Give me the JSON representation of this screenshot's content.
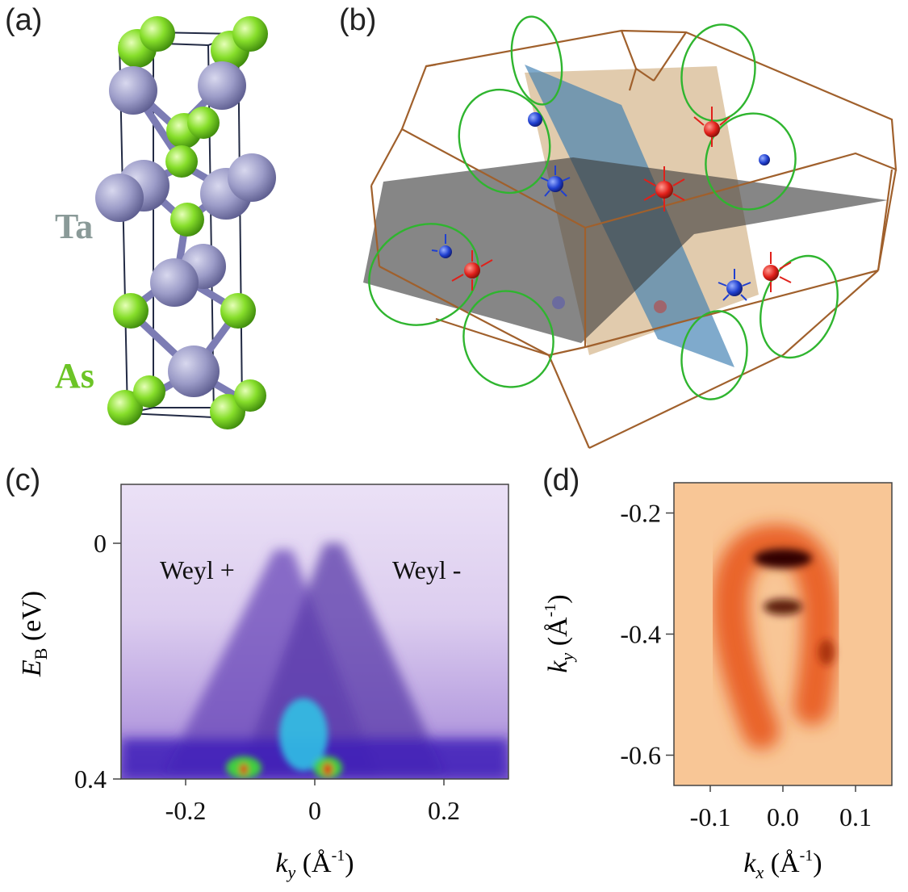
{
  "figure": {
    "panels": {
      "a": {
        "label": "(a)",
        "species": [
          {
            "name": "Ta",
            "color": "#9c9cc8"
          },
          {
            "name": "As",
            "color": "#7ed321"
          }
        ]
      },
      "b": {
        "label": "(b)"
      },
      "c": {
        "label": "(c)",
        "annotations": [
          "Weyl +",
          "Weyl -"
        ]
      },
      "d": {
        "label": "(d)"
      }
    },
    "colors": {
      "ta_atom": "#9c9cc8",
      "as_atom": "#7ed321",
      "bz_edge": "#a0602c",
      "plus_chirality": "#e0201a",
      "minus_chirality": "#2040d0",
      "nodal_loop": "#2fb52f"
    }
  },
  "chart_data": [
    {
      "panel": "c",
      "type": "heatmap",
      "xlabel": "k_y (Å^-1)",
      "ylabel": "E_B (eV)",
      "xlim": [
        -0.3,
        0.3
      ],
      "ylim": [
        0.4,
        -0.1
      ],
      "x_ticks": [
        -0.2,
        0,
        0.2
      ],
      "x_tick_labels": [
        "-0.2",
        "0",
        "0.2"
      ],
      "y_ticks": [
        0,
        0.4
      ],
      "y_tick_labels": [
        "0",
        "0.4"
      ],
      "annotations": [
        "Weyl +",
        "Weyl -"
      ],
      "features": [
        {
          "name": "Weyl +",
          "apex_k": -0.05,
          "apex_E": 0.0
        },
        {
          "name": "Weyl -",
          "apex_k": 0.03,
          "apex_E": 0.0
        }
      ],
      "colormap": [
        "#e8dcf4",
        "#7a52c0",
        "#2020c8",
        "#30c8e8",
        "#40d040",
        "#e02010"
      ]
    },
    {
      "panel": "d",
      "type": "heatmap",
      "xlabel": "k_x (Å^-1)",
      "ylabel": "k_y (Å^-1)",
      "xlim": [
        -0.15,
        0.15
      ],
      "ylim": [
        -0.65,
        -0.15
      ],
      "x_ticks": [
        -0.1,
        0.0,
        0.1
      ],
      "x_tick_labels": [
        "-0.1",
        "0.0",
        "0.1"
      ],
      "y_ticks": [
        -0.2,
        -0.4,
        -0.6
      ],
      "y_tick_labels": [
        "-0.2",
        "-0.4",
        "-0.6"
      ],
      "colormap": [
        "#fbe2c4",
        "#f19a50",
        "#e04a18",
        "#300000"
      ]
    }
  ],
  "text": {
    "c_xlabel_var": "k",
    "c_xlabel_sub": "y",
    "c_xlabel_unit": "(Å",
    "c_xlabel_exp": "-1",
    "c_xlabel_close": ")",
    "c_ylabel_var": "E",
    "c_ylabel_sub": "B",
    "c_ylabel_unit": "(eV)",
    "d_xlabel_var": "k",
    "d_xlabel_sub": "x",
    "d_xlabel_unit": "(Å",
    "d_xlabel_exp": "-1",
    "d_xlabel_close": ")",
    "d_ylabel_var": "k",
    "d_ylabel_sub": "y",
    "d_ylabel_unit": "(Å",
    "d_ylabel_exp": "-1",
    "d_ylabel_close": ")"
  }
}
